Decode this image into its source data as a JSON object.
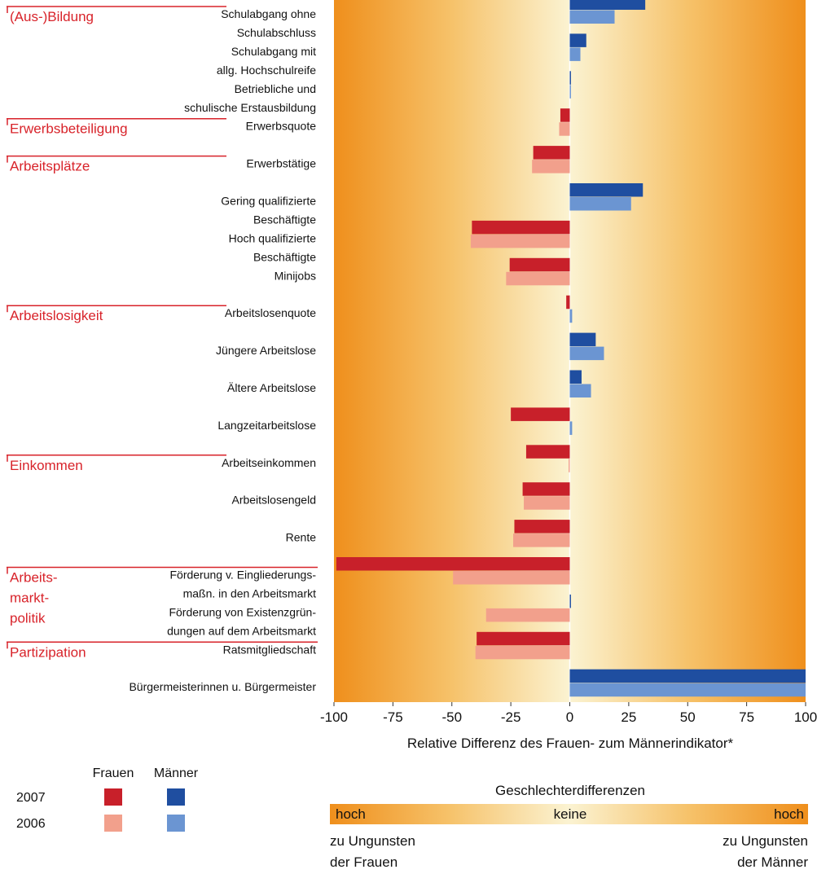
{
  "chart_data": {
    "type": "bar",
    "orientation": "horizontal",
    "categories": [
      [
        "Schulabgang ohne",
        "Schulabschluss"
      ],
      [
        "Schulabgang mit",
        "allg. Hochschulreife"
      ],
      [
        "Betriebliche und",
        "schulische Erstausbildung"
      ],
      [
        "Erwerbsquote"
      ],
      [
        "Erwerbstätige"
      ],
      [
        "Gering qualifizierte",
        "Beschäftigte"
      ],
      [
        "Hoch qualifizierte",
        "Beschäftigte"
      ],
      [
        "Minijobs"
      ],
      [
        "Arbeitslosenquote"
      ],
      [
        "Jüngere Arbeitslose"
      ],
      [
        "Ältere Arbeitslose"
      ],
      [
        "Langzeitarbeitslose"
      ],
      [
        "Arbeitseinkommen"
      ],
      [
        "Arbeitslosengeld"
      ],
      [
        "Rente"
      ],
      [
        "Förderung v. Eingliederungs-",
        "maßn. in den Arbeitsmarkt"
      ],
      [
        "Förderung von Existenzgrün-",
        "dungen auf dem Arbeitsmarkt"
      ],
      [
        "Ratsmitgliedschaft"
      ],
      [
        "Bürgermeisterinnen u. Bürgermeister"
      ]
    ],
    "groups": [
      {
        "label": [
          "(Aus-)Bildung"
        ],
        "row": 0
      },
      {
        "label": [
          "Erwerbsbeteiligung"
        ],
        "row": 3
      },
      {
        "label": [
          "Arbeitsplätze"
        ],
        "row": 4
      },
      {
        "label": [
          "Arbeitslosigkeit"
        ],
        "row": 8
      },
      {
        "label": [
          "Einkommen"
        ],
        "row": 12
      },
      {
        "label": [
          "Arbeits-",
          "markt-",
          "politik"
        ],
        "row": 15
      },
      {
        "label": [
          "Partizipation"
        ],
        "row": 17
      }
    ],
    "series": [
      {
        "name": "2007",
        "colors": {
          "negative": "#c8202a",
          "positive": "#1f4ea0"
        },
        "values": [
          32,
          7,
          0.5,
          -4,
          -15.5,
          31,
          -41.5,
          -25.5,
          -1.5,
          11,
          5,
          -25,
          -18.5,
          -20,
          -23.5,
          -99,
          0.5,
          -39.5,
          100
        ]
      },
      {
        "name": "2006",
        "colors": {
          "negative": "#f2a08c",
          "positive": "#6b95d2"
        },
        "values": [
          19,
          4.5,
          0.5,
          -4.5,
          -16,
          26,
          -42,
          -27,
          1,
          14.5,
          9,
          1,
          -0.5,
          -19.5,
          -24,
          -49.5,
          -35.5,
          -40,
          100
        ]
      }
    ],
    "legend_columns": [
      "Frauen",
      "Männer"
    ],
    "xlim": [
      -100,
      100
    ],
    "xticks": [
      -100,
      -75,
      -50,
      -25,
      0,
      25,
      50,
      75,
      100
    ],
    "x_label": "Relative Differenz des Frauen- zum Männerindikator*",
    "scale_legend": {
      "title": "Geschlechterdifferenzen",
      "left": "hoch",
      "center": "keine",
      "right": "hoch",
      "left_note": [
        "zu Ungunsten",
        "der Frauen"
      ],
      "right_note": [
        "zu Ungunsten",
        "der Männer"
      ]
    }
  }
}
